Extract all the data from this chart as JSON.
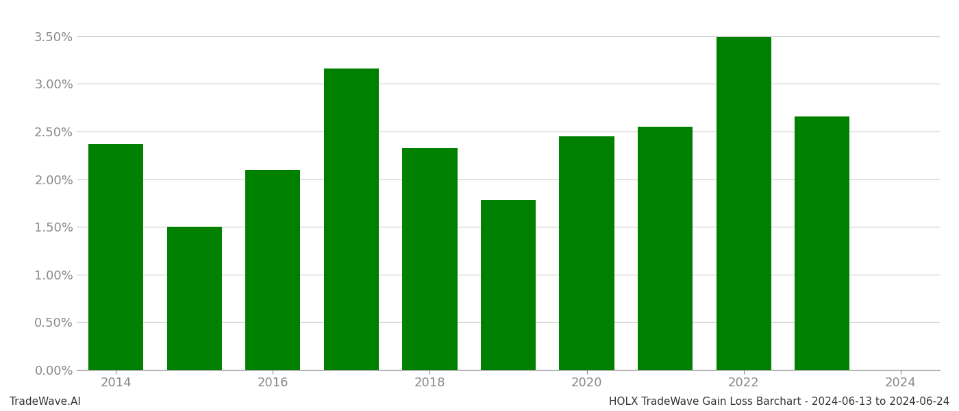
{
  "years": [
    2014,
    2015,
    2016,
    2017,
    2018,
    2019,
    2020,
    2021,
    2022,
    2023
  ],
  "values": [
    0.0237,
    0.015,
    0.021,
    0.0316,
    0.0233,
    0.0178,
    0.0245,
    0.0255,
    0.0349,
    0.0266
  ],
  "bar_color": "#008000",
  "background_color": "#ffffff",
  "grid_color": "#cccccc",
  "ylim": [
    0,
    0.0375
  ],
  "yticks": [
    0.0,
    0.005,
    0.01,
    0.015,
    0.02,
    0.025,
    0.03,
    0.035
  ],
  "xticks": [
    2014,
    2016,
    2018,
    2020,
    2022,
    2024
  ],
  "xlim": [
    2013.5,
    2024.5
  ],
  "footer_left": "TradeWave.AI",
  "footer_right": "HOLX TradeWave Gain Loss Barchart - 2024-06-13 to 2024-06-24",
  "footer_fontsize": 11,
  "tick_fontsize": 13,
  "axis_color": "#888888",
  "bar_width": 0.7
}
